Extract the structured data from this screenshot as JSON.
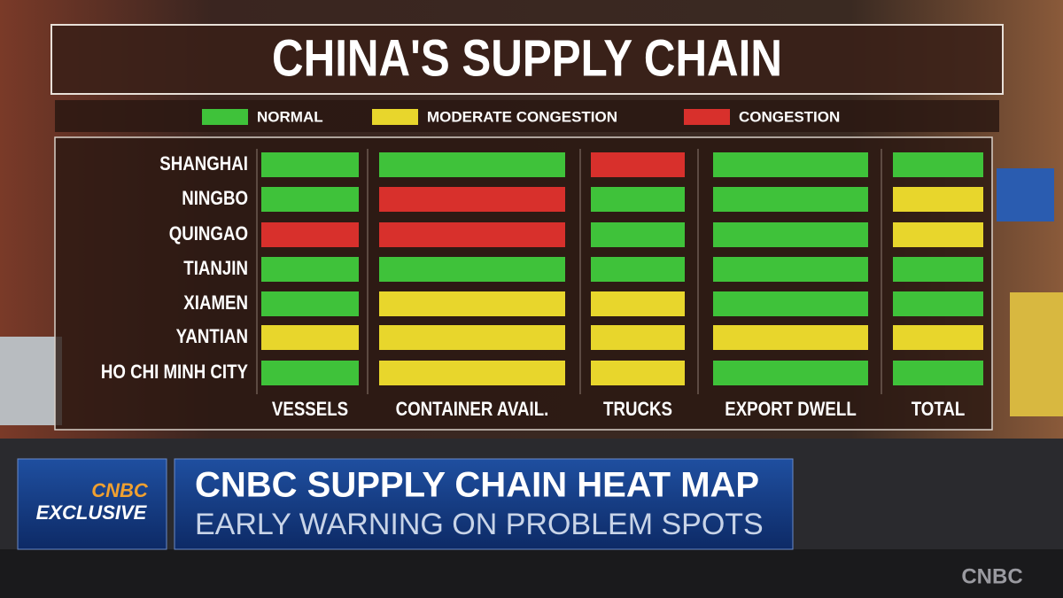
{
  "header": {
    "title": "CHINA'S SUPPLY CHAIN"
  },
  "legend": [
    {
      "label": "NORMAL",
      "color": "#3fc23a"
    },
    {
      "label": "MODERATE CONGESTION",
      "color": "#e8d62c"
    },
    {
      "label": "CONGESTION",
      "color": "#d8302c"
    }
  ],
  "table": {
    "columns": [
      "VESSELS",
      "CONTAINER AVAIL.",
      "TRUCKS",
      "EXPORT DWELL",
      "TOTAL"
    ],
    "rows": [
      {
        "port": "SHANGHAI",
        "status": [
          0,
          0,
          2,
          0,
          0
        ]
      },
      {
        "port": "NINGBO",
        "status": [
          0,
          2,
          0,
          0,
          1
        ]
      },
      {
        "port": "QUINGAO",
        "status": [
          2,
          2,
          0,
          0,
          1
        ]
      },
      {
        "port": "TIANJIN",
        "status": [
          0,
          0,
          0,
          0,
          0
        ]
      },
      {
        "port": "XIAMEN",
        "status": [
          0,
          1,
          1,
          0,
          0
        ]
      },
      {
        "port": "YANTIAN",
        "status": [
          1,
          1,
          1,
          1,
          1
        ]
      },
      {
        "port": "HO CHI MINH CITY",
        "status": [
          0,
          1,
          1,
          0,
          0
        ]
      }
    ]
  },
  "lower_third": {
    "badge_brand": "CNBC",
    "badge_text": "EXCLUSIVE",
    "headline": "CNBC SUPPLY CHAIN HEAT MAP",
    "subhead": "EARLY WARNING ON PROBLEM SPOTS"
  },
  "watermark": "CNBC"
}
